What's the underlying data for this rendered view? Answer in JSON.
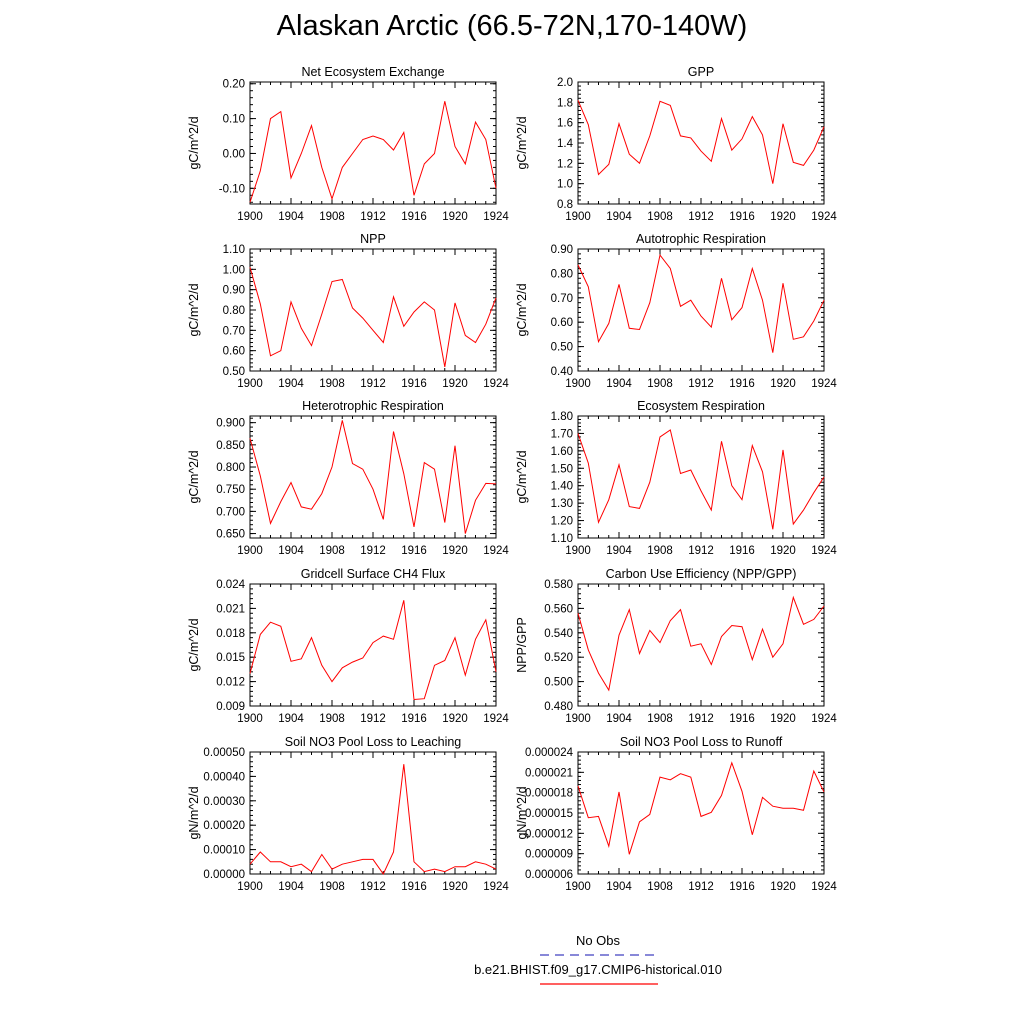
{
  "title": "Alaskan Arctic (66.5-72N,170-140W)",
  "legend": {
    "items": [
      {
        "label": "No Obs",
        "color": "#4040c0",
        "dashed": true
      },
      {
        "label": "b.e21.BHIST.f09_g17.CMIP6-historical.010",
        "color": "#ff0000",
        "dashed": false
      }
    ]
  },
  "chart_data": [
    {
      "type": "line",
      "title": "Net Ecosystem Exchange",
      "ylabel": "gC/m^2/d",
      "xlim": [
        1900,
        1924
      ],
      "ylim": [
        -0.145,
        0.205
      ],
      "xticks": [
        "1900",
        "1904",
        "1908",
        "1912",
        "1916",
        "1920",
        "1924"
      ],
      "yticks": [
        "-0.10",
        "0.00",
        "0.10",
        "0.20"
      ],
      "series": [
        {
          "color": "#ff0000",
          "x": [
            1900,
            1901,
            1902,
            1903,
            1904,
            1905,
            1906,
            1907,
            1908,
            1909,
            1910,
            1911,
            1912,
            1913,
            1914,
            1915,
            1916,
            1917,
            1918,
            1919,
            1920,
            1921,
            1922,
            1923,
            1924
          ],
          "values": [
            -0.14,
            -0.05,
            0.1,
            0.12,
            -0.07,
            0.0,
            0.08,
            -0.04,
            -0.13,
            -0.04,
            0.0,
            0.04,
            0.05,
            0.04,
            0.01,
            0.06,
            -0.12,
            -0.03,
            0.0,
            0.15,
            0.02,
            -0.03,
            0.09,
            0.04,
            -0.1
          ]
        }
      ]
    },
    {
      "type": "line",
      "title": "GPP",
      "ylabel": "gC/m^2/d",
      "xlim": [
        1900,
        1924
      ],
      "ylim": [
        0.8,
        2.0
      ],
      "xticks": [
        "1900",
        "1904",
        "1908",
        "1912",
        "1916",
        "1920",
        "1924"
      ],
      "yticks": [
        "0.8",
        "1.0",
        "1.2",
        "1.4",
        "1.6",
        "1.8",
        "2.0"
      ],
      "series": [
        {
          "color": "#ff0000",
          "x": [
            1900,
            1901,
            1902,
            1903,
            1904,
            1905,
            1906,
            1907,
            1908,
            1909,
            1910,
            1911,
            1912,
            1913,
            1914,
            1915,
            1916,
            1917,
            1918,
            1919,
            1920,
            1921,
            1922,
            1923,
            1924
          ],
          "values": [
            1.82,
            1.58,
            1.09,
            1.19,
            1.59,
            1.29,
            1.2,
            1.47,
            1.81,
            1.77,
            1.47,
            1.45,
            1.32,
            1.22,
            1.64,
            1.33,
            1.44,
            1.66,
            1.48,
            1.0,
            1.59,
            1.21,
            1.18,
            1.33,
            1.56
          ]
        }
      ]
    },
    {
      "type": "line",
      "title": "NPP",
      "ylabel": "gC/m^2/d",
      "xlim": [
        1900,
        1924
      ],
      "ylim": [
        0.5,
        1.1
      ],
      "xticks": [
        "1900",
        "1904",
        "1908",
        "1912",
        "1916",
        "1920",
        "1924"
      ],
      "yticks": [
        "0.50",
        "0.60",
        "0.70",
        "0.80",
        "0.90",
        "1.00",
        "1.10"
      ],
      "series": [
        {
          "color": "#ff0000",
          "x": [
            1900,
            1901,
            1902,
            1903,
            1904,
            1905,
            1906,
            1907,
            1908,
            1909,
            1910,
            1911,
            1912,
            1913,
            1914,
            1915,
            1916,
            1917,
            1918,
            1919,
            1920,
            1921,
            1922,
            1923,
            1924
          ],
          "values": [
            1.01,
            0.83,
            0.575,
            0.6,
            0.84,
            0.71,
            0.625,
            0.78,
            0.94,
            0.95,
            0.81,
            0.76,
            0.7,
            0.64,
            0.865,
            0.72,
            0.79,
            0.84,
            0.8,
            0.52,
            0.835,
            0.675,
            0.64,
            0.73,
            0.86
          ]
        }
      ]
    },
    {
      "type": "line",
      "title": "Autotrophic Respiration",
      "ylabel": "gC/m^2/d",
      "xlim": [
        1900,
        1924
      ],
      "ylim": [
        0.4,
        0.9
      ],
      "xticks": [
        "1900",
        "1904",
        "1908",
        "1912",
        "1916",
        "1920",
        "1924"
      ],
      "yticks": [
        "0.40",
        "0.50",
        "0.60",
        "0.70",
        "0.80",
        "0.90"
      ],
      "series": [
        {
          "color": "#ff0000",
          "x": [
            1900,
            1901,
            1902,
            1903,
            1904,
            1905,
            1906,
            1907,
            1908,
            1909,
            1910,
            1911,
            1912,
            1913,
            1914,
            1915,
            1916,
            1917,
            1918,
            1919,
            1920,
            1921,
            1922,
            1923,
            1924
          ],
          "values": [
            0.835,
            0.745,
            0.52,
            0.595,
            0.755,
            0.575,
            0.57,
            0.68,
            0.875,
            0.82,
            0.665,
            0.69,
            0.625,
            0.58,
            0.78,
            0.61,
            0.66,
            0.82,
            0.69,
            0.475,
            0.76,
            0.53,
            0.54,
            0.605,
            0.69
          ]
        }
      ]
    },
    {
      "type": "line",
      "title": "Heterotrophic Respiration",
      "ylabel": "gC/m^2/d",
      "xlim": [
        1900,
        1924
      ],
      "ylim": [
        0.64,
        0.915
      ],
      "xticks": [
        "1900",
        "1904",
        "1908",
        "1912",
        "1916",
        "1920",
        "1924"
      ],
      "yticks": [
        "0.650",
        "0.700",
        "0.750",
        "0.800",
        "0.850",
        "0.900"
      ],
      "series": [
        {
          "color": "#ff0000",
          "x": [
            1900,
            1901,
            1902,
            1903,
            1904,
            1905,
            1906,
            1907,
            1908,
            1909,
            1910,
            1911,
            1912,
            1913,
            1914,
            1915,
            1916,
            1917,
            1918,
            1919,
            1920,
            1921,
            1922,
            1923,
            1924
          ],
          "values": [
            0.865,
            0.78,
            0.673,
            0.722,
            0.765,
            0.71,
            0.705,
            0.74,
            0.8,
            0.905,
            0.808,
            0.795,
            0.75,
            0.682,
            0.88,
            0.785,
            0.665,
            0.81,
            0.795,
            0.675,
            0.848,
            0.65,
            0.725,
            0.763,
            0.762
          ]
        }
      ]
    },
    {
      "type": "line",
      "title": "Ecosystem Respiration",
      "ylabel": "gC/m^2/d",
      "xlim": [
        1900,
        1924
      ],
      "ylim": [
        1.1,
        1.8
      ],
      "xticks": [
        "1900",
        "1904",
        "1908",
        "1912",
        "1916",
        "1920",
        "1924"
      ],
      "yticks": [
        "1.10",
        "1.20",
        "1.30",
        "1.40",
        "1.50",
        "1.60",
        "1.70",
        "1.80"
      ],
      "series": [
        {
          "color": "#ff0000",
          "x": [
            1900,
            1901,
            1902,
            1903,
            1904,
            1905,
            1906,
            1907,
            1908,
            1909,
            1910,
            1911,
            1912,
            1913,
            1914,
            1915,
            1916,
            1917,
            1918,
            1919,
            1920,
            1921,
            1922,
            1923,
            1924
          ],
          "values": [
            1.7,
            1.53,
            1.19,
            1.32,
            1.52,
            1.28,
            1.27,
            1.42,
            1.68,
            1.72,
            1.47,
            1.49,
            1.37,
            1.26,
            1.655,
            1.4,
            1.32,
            1.63,
            1.48,
            1.15,
            1.605,
            1.18,
            1.26,
            1.36,
            1.45
          ]
        }
      ]
    },
    {
      "type": "line",
      "title": "Gridcell Surface CH4 Flux",
      "ylabel": "gC/m^2/d",
      "xlim": [
        1900,
        1924
      ],
      "ylim": [
        0.009,
        0.024
      ],
      "xticks": [
        "1900",
        "1904",
        "1908",
        "1912",
        "1916",
        "1920",
        "1924"
      ],
      "yticks": [
        "0.009",
        "0.012",
        "0.015",
        "0.018",
        "0.021",
        "0.024"
      ],
      "series": [
        {
          "color": "#ff0000",
          "x": [
            1900,
            1901,
            1902,
            1903,
            1904,
            1905,
            1906,
            1907,
            1908,
            1909,
            1910,
            1911,
            1912,
            1913,
            1914,
            1915,
            1916,
            1917,
            1918,
            1919,
            1920,
            1921,
            1922,
            1923,
            1924
          ],
          "values": [
            0.013,
            0.0178,
            0.0193,
            0.0188,
            0.0145,
            0.0148,
            0.0174,
            0.014,
            0.012,
            0.0137,
            0.0144,
            0.0149,
            0.0168,
            0.0176,
            0.0172,
            0.022,
            0.0098,
            0.0099,
            0.014,
            0.0146,
            0.0174,
            0.0128,
            0.0172,
            0.0196,
            0.0132
          ]
        }
      ]
    },
    {
      "type": "line",
      "title": "Carbon Use Efficiency (NPP/GPP)",
      "ylabel": "NPP/GPP",
      "xlim": [
        1900,
        1924
      ],
      "ylim": [
        0.48,
        0.58
      ],
      "xticks": [
        "1900",
        "1904",
        "1908",
        "1912",
        "1916",
        "1920",
        "1924"
      ],
      "yticks": [
        "0.480",
        "0.500",
        "0.520",
        "0.540",
        "0.560",
        "0.580"
      ],
      "series": [
        {
          "color": "#ff0000",
          "x": [
            1900,
            1901,
            1902,
            1903,
            1904,
            1905,
            1906,
            1907,
            1908,
            1909,
            1910,
            1911,
            1912,
            1913,
            1914,
            1915,
            1916,
            1917,
            1918,
            1919,
            1920,
            1921,
            1922,
            1923,
            1924
          ],
          "values": [
            0.556,
            0.526,
            0.507,
            0.493,
            0.538,
            0.559,
            0.523,
            0.542,
            0.532,
            0.55,
            0.559,
            0.529,
            0.531,
            0.514,
            0.537,
            0.546,
            0.545,
            0.518,
            0.543,
            0.52,
            0.531,
            0.569,
            0.547,
            0.551,
            0.562
          ]
        }
      ]
    },
    {
      "type": "line",
      "title": "Soil NO3 Pool Loss to Leaching",
      "ylabel": "gN/m^2/d",
      "xlim": [
        1900,
        1924
      ],
      "ylim": [
        0.0,
        0.0005
      ],
      "xticks": [
        "1900",
        "1904",
        "1908",
        "1912",
        "1916",
        "1920",
        "1924"
      ],
      "yticks": [
        "0.00000",
        "0.00010",
        "0.00020",
        "0.00030",
        "0.00040",
        "0.00050"
      ],
      "series": [
        {
          "color": "#ff0000",
          "x": [
            1900,
            1901,
            1902,
            1903,
            1904,
            1905,
            1906,
            1907,
            1908,
            1909,
            1910,
            1911,
            1912,
            1913,
            1914,
            1915,
            1916,
            1917,
            1918,
            1919,
            1920,
            1921,
            1922,
            1923,
            1924
          ],
          "values": [
            4e-05,
            9e-05,
            5e-05,
            5e-05,
            3e-05,
            4e-05,
            1e-05,
            8e-05,
            2e-05,
            4e-05,
            5e-05,
            6e-05,
            6e-05,
            0.0,
            9e-05,
            0.00045,
            5e-05,
            1e-05,
            2e-05,
            1e-05,
            3e-05,
            3e-05,
            5e-05,
            4e-05,
            2e-05
          ]
        }
      ]
    },
    {
      "type": "line",
      "title": "Soil NO3 Pool Loss to Runoff",
      "ylabel": "gN/m^2/d",
      "xlim": [
        1900,
        1924
      ],
      "ylim": [
        6e-06,
        2.4e-05
      ],
      "xticks": [
        "1900",
        "1904",
        "1908",
        "1912",
        "1916",
        "1920",
        "1924"
      ],
      "yticks": [
        "0.000006",
        "0.000009",
        "0.000012",
        "0.000015",
        "0.000018",
        "0.000021",
        "0.000024"
      ],
      "series": [
        {
          "color": "#ff0000",
          "x": [
            1900,
            1901,
            1902,
            1903,
            1904,
            1905,
            1906,
            1907,
            1908,
            1909,
            1910,
            1911,
            1912,
            1913,
            1914,
            1915,
            1916,
            1917,
            1918,
            1919,
            1920,
            1921,
            1922,
            1923,
            1924
          ],
          "values": [
            1.9e-05,
            1.43e-05,
            1.45e-05,
            1.01e-05,
            1.81e-05,
            8.9e-06,
            1.37e-05,
            1.48e-05,
            2.03e-05,
            1.99e-05,
            2.08e-05,
            2.03e-05,
            1.45e-05,
            1.51e-05,
            1.76e-05,
            2.24e-05,
            1.82e-05,
            1.18e-05,
            1.73e-05,
            1.6e-05,
            1.57e-05,
            1.57e-05,
            1.54e-05,
            2.12e-05,
            1.81e-05
          ]
        }
      ]
    }
  ]
}
